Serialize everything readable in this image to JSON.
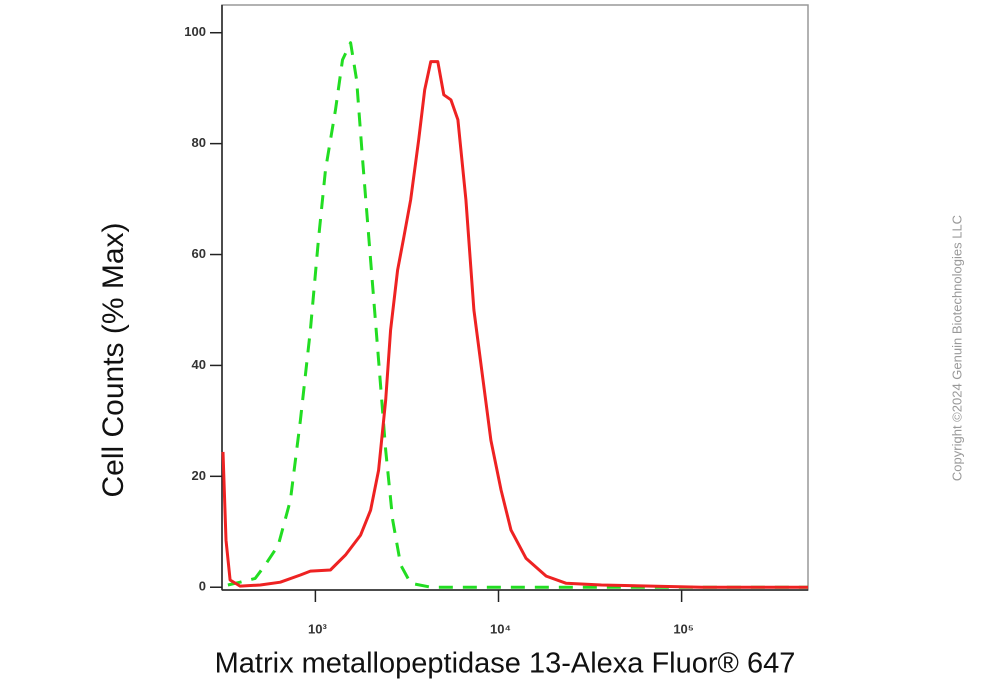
{
  "chart_data": {
    "type": "line",
    "x_label": "Matrix metallopeptidase 13-Alexa Fluor® 647",
    "y_label": "Cell Counts (% Max)",
    "watermark": "Copyright ©2024 Genuin Biotechnologies LLC",
    "log_x": true,
    "xlim": [
      309,
      490000
    ],
    "ylim": [
      -0.5,
      105
    ],
    "xticks": [
      {
        "value": 1000,
        "label": "10³"
      },
      {
        "value": 10000,
        "label": "10⁴"
      },
      {
        "value": 100000,
        "label": "10⁵"
      }
    ],
    "yticks": [
      0,
      20,
      40,
      60,
      80,
      100
    ],
    "series": [
      {
        "color": "#22dd22",
        "dashed": true,
        "x": [
          333,
          388,
          469,
          532,
          627,
          730,
          828,
          939,
          1038,
          1135,
          1288,
          1406,
          1556,
          1679,
          1811,
          2001,
          2214,
          2420,
          2644,
          2924,
          3317,
          4268,
          10330,
          490000
        ],
        "values": [
          0.4,
          0.9,
          1.6,
          4,
          7.6,
          15.7,
          30.1,
          46.4,
          62.6,
          75.3,
          86.1,
          95.1,
          98.2,
          91.5,
          77.1,
          59.0,
          40.9,
          24.7,
          12.1,
          4.0,
          0.7,
          0,
          0,
          0
        ]
      },
      {
        "color": "#ee2222",
        "dashed": false,
        "x": [
          313,
          325,
          342,
          388,
          500,
          643,
          828,
          939,
          1208,
          1459,
          1765,
          2001,
          2214,
          2420,
          2576,
          2812,
          3034,
          3317,
          3666,
          3955,
          4268,
          4660,
          5025,
          5495,
          6003,
          6637,
          7339,
          8227,
          9093,
          10330,
          11700,
          14150,
          18210,
          23440,
          36480,
          128800,
          490000
        ],
        "values": [
          24.4,
          8.5,
          1.3,
          0.2,
          0.4,
          0.9,
          2.2,
          2.9,
          3.1,
          5.8,
          9.4,
          13.9,
          21.1,
          33.8,
          46.4,
          57.2,
          63.0,
          69.9,
          80.7,
          89.7,
          94.8,
          94.8,
          88.8,
          87.9,
          84.3,
          69.9,
          50.0,
          37.4,
          26.5,
          17.5,
          10.3,
          5.2,
          2.0,
          0.7,
          0.4,
          0,
          0
        ]
      }
    ]
  }
}
